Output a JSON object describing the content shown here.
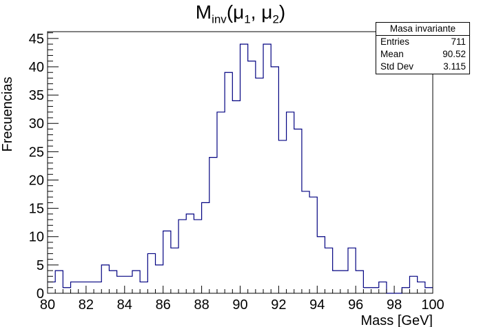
{
  "title_main": "M",
  "title_sub1": "inv",
  "title_open": "(μ",
  "title_sub2": "1",
  "title_mid": ", μ",
  "title_sub3": "2",
  "title_close": ")",
  "stats_box": {
    "name": "Masa invariante",
    "rows": [
      {
        "label": "Entries",
        "value": "711"
      },
      {
        "label": "Mean",
        "value": "90.52"
      },
      {
        "label": "Std Dev",
        "value": "3.115"
      }
    ]
  },
  "colors": {
    "histogram": "#000080",
    "axes": "#000000"
  },
  "chart_data": {
    "type": "histogram",
    "xlabel": "Mass [GeV]",
    "ylabel": "Frecuencias",
    "xlim": [
      80,
      100
    ],
    "ylim": [
      0,
      46.2
    ],
    "x_ticks": [
      80,
      82,
      84,
      86,
      88,
      90,
      92,
      94,
      96,
      98,
      100
    ],
    "y_ticks": [
      0,
      5,
      10,
      15,
      20,
      25,
      30,
      35,
      40,
      45
    ],
    "bin_edges_start": 80,
    "bin_width": 0.4,
    "counts": [
      2,
      4,
      1,
      2,
      2,
      2,
      2,
      5,
      4,
      3,
      3,
      4,
      2,
      7,
      5,
      11,
      8,
      13,
      14,
      13,
      16,
      24,
      32,
      39,
      34,
      44,
      41,
      38,
      44,
      40,
      27,
      32,
      29,
      18,
      17,
      10,
      8,
      4,
      4,
      8,
      4,
      1,
      1,
      2,
      0,
      0,
      1,
      3,
      2,
      1
    ]
  }
}
